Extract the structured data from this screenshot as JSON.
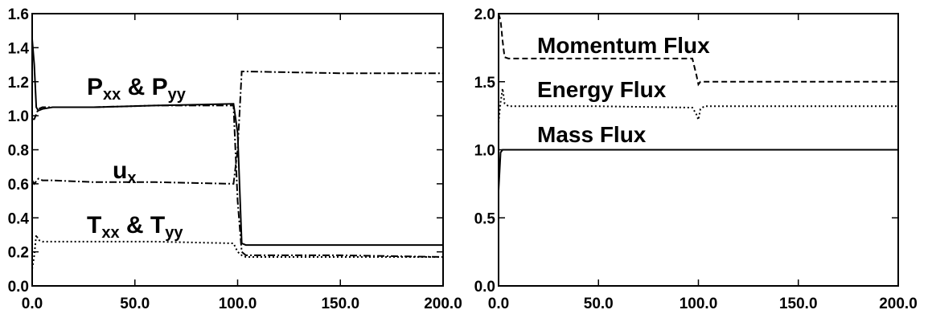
{
  "chart_data": [
    {
      "type": "line",
      "title": "",
      "xlabel": "",
      "ylabel": "",
      "xlim": [
        0,
        200
      ],
      "ylim": [
        0,
        1.6
      ],
      "grid": false,
      "x_ticks": [
        "0.0",
        "50.0",
        "100.0",
        "150.0",
        "200.0"
      ],
      "y_ticks": [
        "0.0",
        "0.2",
        "0.4",
        "0.6",
        "0.8",
        "1.0",
        "1.2",
        "1.4",
        "1.6"
      ],
      "annotations": [
        {
          "id": "pxx",
          "base1": "P",
          "sub1": "xx",
          "mid": " & ",
          "base2": "P",
          "sub2": "yy"
        },
        {
          "id": "ux",
          "base1": "u",
          "sub1": "x"
        },
        {
          "id": "txx",
          "base1": "T",
          "sub1": "xx",
          "mid": " & ",
          "base2": "T",
          "sub2": "yy"
        }
      ],
      "series": [
        {
          "style": "solid",
          "x": [
            0,
            1,
            2,
            3,
            5,
            10,
            30,
            60,
            98,
            100,
            102,
            104,
            150,
            200
          ],
          "y": [
            1.45,
            1.3,
            1.05,
            1.03,
            1.04,
            1.05,
            1.05,
            1.06,
            1.07,
            0.9,
            0.25,
            0.24,
            0.24,
            0.24
          ]
        },
        {
          "style": "dashdot",
          "x": [
            0,
            1,
            3,
            5,
            10,
            30,
            60,
            98,
            100,
            102,
            104,
            150,
            200
          ],
          "y": [
            0.62,
            0.6,
            0.63,
            0.62,
            0.62,
            0.61,
            0.61,
            0.6,
            0.8,
            1.26,
            1.26,
            1.25,
            1.25
          ]
        },
        {
          "style": "dashdot",
          "x": [
            0,
            1,
            3,
            5,
            10,
            30,
            60,
            98,
            100,
            102,
            104,
            150,
            200
          ],
          "y": [
            0.98,
            0.98,
            1.04,
            1.05,
            1.05,
            1.05,
            1.06,
            1.06,
            0.5,
            0.2,
            0.18,
            0.18,
            0.17
          ]
        },
        {
          "style": "dotted",
          "x": [
            0,
            1,
            2,
            3,
            5,
            10,
            30,
            60,
            98,
            100,
            102,
            104,
            150,
            200
          ],
          "y": [
            0.1,
            0.18,
            0.3,
            0.27,
            0.26,
            0.26,
            0.26,
            0.26,
            0.25,
            0.2,
            0.18,
            0.17,
            0.17,
            0.17
          ]
        }
      ]
    },
    {
      "type": "line",
      "title": "",
      "xlabel": "",
      "ylabel": "",
      "xlim": [
        0,
        200
      ],
      "ylim": [
        0,
        2.0
      ],
      "grid": false,
      "x_ticks": [
        "0.0",
        "50.0",
        "100.0",
        "150.0",
        "200.0"
      ],
      "y_ticks": [
        "0.0",
        "0.5",
        "1.0",
        "1.5",
        "2.0"
      ],
      "annotations": [
        {
          "id": "momentum",
          "base1": "Momentum Flux"
        },
        {
          "id": "energy",
          "base1": "Energy Flux"
        },
        {
          "id": "mass",
          "base1": "Mass Flux"
        }
      ],
      "series": [
        {
          "style": "dashed",
          "x": [
            0,
            1,
            2,
            3,
            5,
            50,
            97,
            99,
            100,
            101,
            103,
            150,
            200
          ],
          "y": [
            2.0,
            1.95,
            1.8,
            1.68,
            1.67,
            1.67,
            1.67,
            1.55,
            1.48,
            1.5,
            1.5,
            1.5,
            1.5
          ]
        },
        {
          "style": "dotted",
          "x": [
            0,
            1,
            2,
            3,
            5,
            50,
            97,
            99,
            100,
            101,
            103,
            150,
            200
          ],
          "y": [
            1.2,
            1.35,
            1.45,
            1.34,
            1.32,
            1.32,
            1.31,
            1.26,
            1.22,
            1.3,
            1.32,
            1.32,
            1.32
          ]
        },
        {
          "style": "solid",
          "x": [
            0,
            1,
            2,
            3,
            5,
            50,
            100,
            150,
            200
          ],
          "y": [
            0.7,
            0.98,
            1.0,
            1.0,
            1.0,
            1.0,
            1.0,
            1.0,
            1.0
          ]
        }
      ]
    }
  ]
}
